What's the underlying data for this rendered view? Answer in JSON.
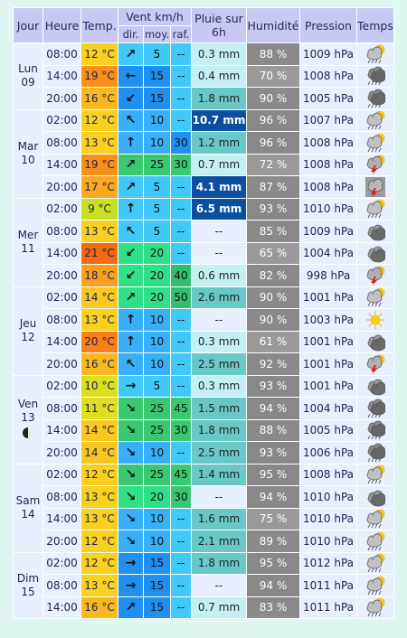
{
  "header": {
    "jour": "Jour",
    "heure": "Heure",
    "temp": "Temp.",
    "vent": "Vent km/h",
    "pluie": "Pluie sur 6h",
    "humid": "Humidité",
    "pression": "Pression",
    "temps": "Temps",
    "dir": "dir.",
    "moy": "moy.",
    "raf": "raf."
  },
  "days": [
    {
      "name": "Lun",
      "num": "09",
      "rows": 3
    },
    {
      "name": "Mar",
      "num": "10",
      "rows": 4
    },
    {
      "name": "Mer",
      "num": "11",
      "rows": 4
    },
    {
      "name": "Jeu",
      "num": "12",
      "rows": 4
    },
    {
      "name": "Ven",
      "num": "13",
      "rows": 4,
      "moon": true
    },
    {
      "name": "Sam",
      "num": "14",
      "rows": 4
    },
    {
      "name": "Dim",
      "num": "15",
      "rows": 3
    }
  ],
  "rows": [
    {
      "heure": "08:00",
      "temp": "12 °C",
      "tc": "#f9d020",
      "dir": "ne",
      "moy": "5",
      "mc": "#40c8f8",
      "raf": "--",
      "rc": "#40c8f8",
      "pluie": "0.3 mm",
      "pc": "#c4f0f4",
      "hum": "88 %",
      "hc": "#8a8a8a",
      "pres": "1009 hPa",
      "wx": "sun-cloud-rain"
    },
    {
      "heure": "14:00",
      "temp": "19 °C",
      "tc": "#f79018",
      "dir": "w",
      "moy": "15",
      "mc": "#1f90f0",
      "raf": "--",
      "rc": "#40c8f8",
      "pluie": "0.4 mm",
      "pc": "#c4f0f4",
      "hum": "70 %",
      "hc": "#9a9a9a",
      "pres": "1008 hPa",
      "wx": "cloud-rain"
    },
    {
      "heure": "20:00",
      "temp": "16 °C",
      "tc": "#f9b820",
      "dir": "sw",
      "moy": "15",
      "mc": "#1f90f0",
      "raf": "--",
      "rc": "#40c8f8",
      "pluie": "1.8 mm",
      "pc": "#68c8c8",
      "hum": "90 %",
      "hc": "#8a8a8a",
      "pres": "1005 hPa",
      "wx": "cloud-rain"
    },
    {
      "heure": "02:00",
      "temp": "12 °C",
      "tc": "#f9d020",
      "dir": "nw",
      "moy": "10",
      "mc": "#38b0f8",
      "raf": "--",
      "rc": "#40c8f8",
      "pluie": "10.7 mm",
      "pc": "#0a4fa0",
      "dark": true,
      "hum": "96 %",
      "hc": "#888888",
      "pres": "1007 hPa",
      "wx": "sun-cloud-rain"
    },
    {
      "heure": "08:00",
      "temp": "13 °C",
      "tc": "#f9d020",
      "dir": "n",
      "moy": "10",
      "mc": "#38b0f8",
      "raf": "30",
      "rc": "#1f90f0",
      "pluie": "1.2 mm",
      "pc": "#68c8c8",
      "hum": "96 %",
      "hc": "#888888",
      "pres": "1008 hPa",
      "wx": "sun-cloud-rain"
    },
    {
      "heure": "14:00",
      "temp": "19 °C",
      "tc": "#f79018",
      "dir": "ne",
      "moy": "25",
      "mc": "#38c870",
      "raf": "30",
      "rc": "#38c870",
      "pluie": "0.7 mm",
      "pc": "#c4f0f4",
      "hum": "72 %",
      "hc": "#9a9a9a",
      "pres": "1008 hPa",
      "wx": "storm"
    },
    {
      "heure": "20:00",
      "temp": "17 °C",
      "tc": "#f9a820",
      "dir": "ne",
      "moy": "5",
      "mc": "#40c8f8",
      "raf": "--",
      "rc": "#40c8f8",
      "pluie": "4.1 mm",
      "pc": "#0a4fa0",
      "dark": true,
      "hum": "87 %",
      "hc": "#8a8a8a",
      "pres": "1008 hPa",
      "wx": "storm-moon"
    },
    {
      "heure": "02:00",
      "temp": "9 °C",
      "tc": "#c8e020",
      "dir": "n",
      "moy": "5",
      "mc": "#40c8f8",
      "raf": "--",
      "rc": "#40c8f8",
      "pluie": "6.5 mm",
      "pc": "#0a4fa0",
      "dark": true,
      "hum": "93 %",
      "hc": "#888888",
      "pres": "1010 hPa",
      "wx": "sun-cloud-rain"
    },
    {
      "heure": "08:00",
      "temp": "13 °C",
      "tc": "#f9d020",
      "dir": "nw",
      "moy": "5",
      "mc": "#40c8f8",
      "raf": "--",
      "rc": "#40c8f8",
      "pluie": "--",
      "pc": "#e8f0ff",
      "hum": "85 %",
      "hc": "#8a8a8a",
      "pres": "1009 hPa",
      "wx": "cloud"
    },
    {
      "heure": "14:00",
      "temp": "21 °C",
      "tc": "#f36a10",
      "dir": "sw",
      "moy": "20",
      "mc": "#30e088",
      "raf": "--",
      "rc": "#40c8f8",
      "pluie": "--",
      "pc": "#e8f0ff",
      "hum": "65 %",
      "hc": "#9a9a9a",
      "pres": "1004 hPa",
      "wx": "cloud"
    },
    {
      "heure": "20:00",
      "temp": "18 °C",
      "tc": "#f9a020",
      "dir": "sw",
      "moy": "20",
      "mc": "#30e088",
      "raf": "40",
      "rc": "#30c070",
      "pluie": "0.6 mm",
      "pc": "#c4f0f4",
      "hum": "82 %",
      "hc": "#8a8a8a",
      "pres": "998 hPa",
      "wx": "storm"
    },
    {
      "heure": "02:00",
      "temp": "14 °C",
      "tc": "#f9c820",
      "dir": "ne",
      "moy": "20",
      "mc": "#30e088",
      "raf": "50",
      "rc": "#30c070",
      "pluie": "2.6 mm",
      "pc": "#68c8c8",
      "hum": "90 %",
      "hc": "#8a8a8a",
      "pres": "1001 hPa",
      "wx": "sun-cloud-rain"
    },
    {
      "heure": "08:00",
      "temp": "13 °C",
      "tc": "#f9d020",
      "dir": "n",
      "moy": "10",
      "mc": "#38b0f8",
      "raf": "--",
      "rc": "#40c8f8",
      "pluie": "--",
      "pc": "#e8f0ff",
      "hum": "90 %",
      "hc": "#8a8a8a",
      "pres": "1003 hPa",
      "wx": "sun"
    },
    {
      "heure": "14:00",
      "temp": "20 °C",
      "tc": "#f78018",
      "dir": "n",
      "moy": "10",
      "mc": "#38b0f8",
      "raf": "--",
      "rc": "#40c8f8",
      "pluie": "0.3 mm",
      "pc": "#c4f0f4",
      "hum": "61 %",
      "hc": "#9a9a9a",
      "pres": "1001 hPa",
      "wx": "cloud"
    },
    {
      "heure": "20:00",
      "temp": "16 °C",
      "tc": "#f9b820",
      "dir": "nw",
      "moy": "10",
      "mc": "#38b0f8",
      "raf": "--",
      "rc": "#40c8f8",
      "pluie": "2.5 mm",
      "pc": "#68c8c8",
      "hum": "92 %",
      "hc": "#8a8a8a",
      "pres": "1001 hPa",
      "wx": "storm"
    },
    {
      "heure": "02:00",
      "temp": "10 °C",
      "tc": "#d8e020",
      "dir": "e",
      "moy": "5",
      "mc": "#40c8f8",
      "raf": "--",
      "rc": "#40c8f8",
      "pluie": "0.3 mm",
      "pc": "#c4f0f4",
      "hum": "93 %",
      "hc": "#888888",
      "pres": "1001 hPa",
      "wx": "cloud"
    },
    {
      "heure": "08:00",
      "temp": "11 °C",
      "tc": "#e0dc20",
      "dir": "se",
      "moy": "25",
      "mc": "#38c870",
      "raf": "45",
      "rc": "#38c870",
      "pluie": "1.5 mm",
      "pc": "#68c8c8",
      "hum": "94 %",
      "hc": "#888888",
      "pres": "1004 hPa",
      "wx": "cloud-rain"
    },
    {
      "heure": "14:00",
      "temp": "14 °C",
      "tc": "#f9c820",
      "dir": "se",
      "moy": "25",
      "mc": "#38c870",
      "raf": "30",
      "rc": "#38c870",
      "pluie": "1.8 mm",
      "pc": "#68c8c8",
      "hum": "88 %",
      "hc": "#8a8a8a",
      "pres": "1005 hPa",
      "wx": "cloud-rain"
    },
    {
      "heure": "20:00",
      "temp": "14 °C",
      "tc": "#f9c820",
      "dir": "se",
      "moy": "10",
      "mc": "#38b0f8",
      "raf": "--",
      "rc": "#40c8f8",
      "pluie": "2.5 mm",
      "pc": "#68c8c8",
      "hum": "93 %",
      "hc": "#888888",
      "pres": "1006 hPa",
      "wx": "cloud-rain"
    },
    {
      "heure": "02:00",
      "temp": "12 °C",
      "tc": "#f9d020",
      "dir": "se",
      "moy": "25",
      "mc": "#38c870",
      "raf": "45",
      "rc": "#38c870",
      "pluie": "1.4 mm",
      "pc": "#68c8c8",
      "hum": "95 %",
      "hc": "#888888",
      "pres": "1008 hPa",
      "wx": "sun-cloud-rain"
    },
    {
      "heure": "08:00",
      "temp": "13 °C",
      "tc": "#f9d020",
      "dir": "se",
      "moy": "20",
      "mc": "#30e088",
      "raf": "30",
      "rc": "#38c870",
      "pluie": "--",
      "pc": "#e8f0ff",
      "hum": "94 %",
      "hc": "#888888",
      "pres": "1010 hPa",
      "wx": "cloud"
    },
    {
      "heure": "14:00",
      "temp": "13 °C",
      "tc": "#f9d020",
      "dir": "se",
      "moy": "10",
      "mc": "#38b0f8",
      "raf": "--",
      "rc": "#40c8f8",
      "pluie": "1.6 mm",
      "pc": "#68c8c8",
      "hum": "75 %",
      "hc": "#9a9a9a",
      "pres": "1010 hPa",
      "wx": "sun-cloud-rain"
    },
    {
      "heure": "20:00",
      "temp": "12 °C",
      "tc": "#f9d020",
      "dir": "se",
      "moy": "10",
      "mc": "#38b0f8",
      "raf": "--",
      "rc": "#40c8f8",
      "pluie": "2.1 mm",
      "pc": "#68c8c8",
      "hum": "89 %",
      "hc": "#8a8a8a",
      "pres": "1010 hPa",
      "wx": "sun-cloud-rain"
    },
    {
      "heure": "02:00",
      "temp": "12 °C",
      "tc": "#f9d020",
      "dir": "e",
      "moy": "15",
      "mc": "#1f90f0",
      "raf": "--",
      "rc": "#40c8f8",
      "pluie": "1.8 mm",
      "pc": "#68c8c8",
      "hum": "95 %",
      "hc": "#888888",
      "pres": "1012 hPa",
      "wx": "sun-cloud-rain"
    },
    {
      "heure": "08:00",
      "temp": "13 °C",
      "tc": "#f9d020",
      "dir": "e",
      "moy": "15",
      "mc": "#1f90f0",
      "raf": "--",
      "rc": "#40c8f8",
      "pluie": "--",
      "pc": "#e8f0ff",
      "hum": "94 %",
      "hc": "#888888",
      "pres": "1011 hPa",
      "wx": "sun-cloud-rain"
    },
    {
      "heure": "14:00",
      "temp": "16 °C",
      "tc": "#f9b820",
      "dir": "ne",
      "moy": "15",
      "mc": "#1f90f0",
      "raf": "--",
      "rc": "#40c8f8",
      "pluie": "0.7 mm",
      "pc": "#c4f0f4",
      "hum": "83 %",
      "hc": "#8a8a8a",
      "pres": "1011 hPa",
      "wx": "sun-cloud-rain"
    }
  ]
}
